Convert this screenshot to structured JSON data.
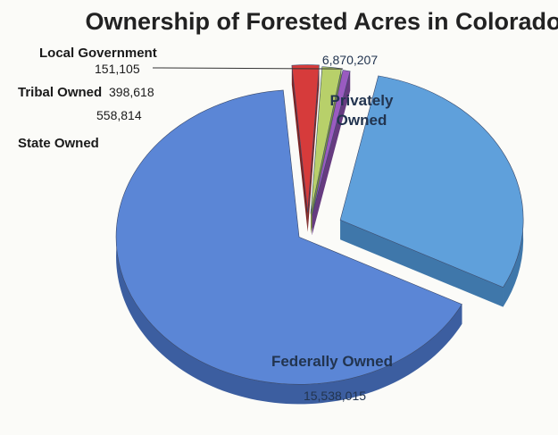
{
  "chart_data": {
    "type": "pie",
    "title": "Ownership of Forested Acres in Colorado",
    "slices": [
      {
        "label": "Privately Owned",
        "value": 6870207,
        "display": "6,870,207",
        "color": "#5fa0db",
        "color_side": "#3f77aa"
      },
      {
        "label": "Federally Owned",
        "value": 15538015,
        "display": "15,538,015",
        "color": "#5b86d6",
        "color_side": "#3c5ea0"
      },
      {
        "label": "State Owned",
        "value": 558814,
        "display": "558,814",
        "color": "#d63b3b",
        "color_side": "#7a2424"
      },
      {
        "label": "Tribal Owned",
        "value": 398618,
        "display": "398,618",
        "color": "#b8d06a",
        "color_side": "#7d8f3e"
      },
      {
        "label": "Local Government",
        "value": 151105,
        "display": "151,105",
        "color": "#9a5bc0",
        "color_side": "#663b80"
      }
    ]
  }
}
